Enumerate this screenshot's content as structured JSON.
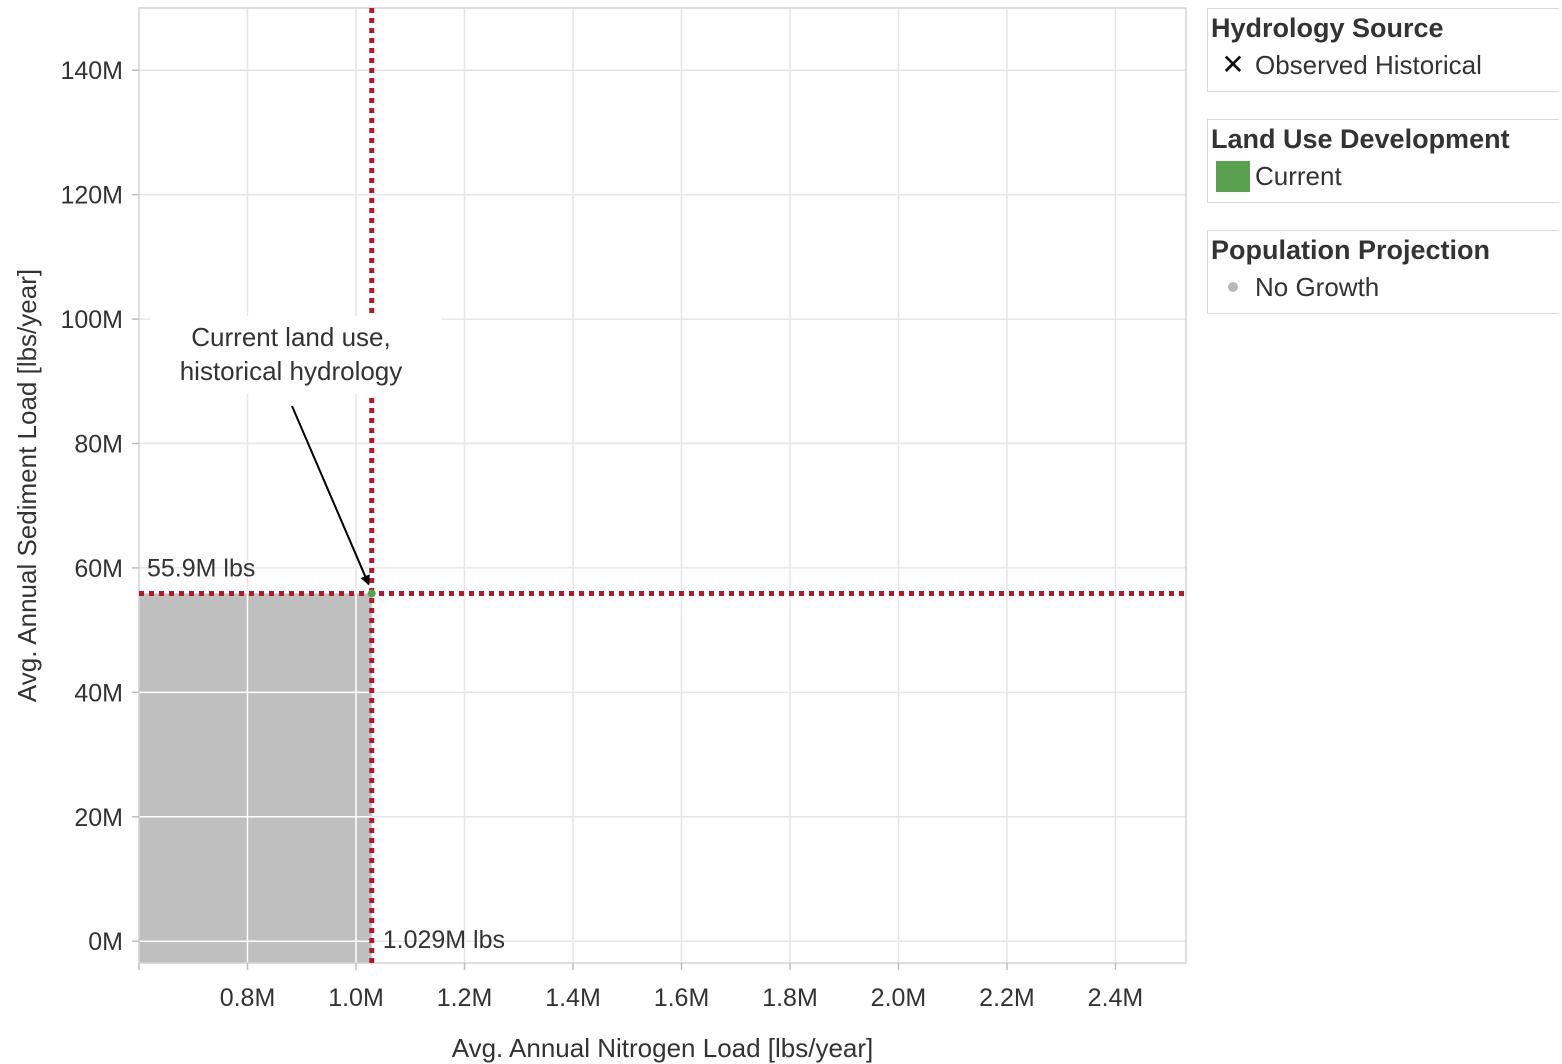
{
  "chart_data": {
    "type": "scatter",
    "xlabel": "Avg. Annual Nitrogen Load [lbs/year]",
    "ylabel": "Avg. Annual Sediment Load  [lbs/year]",
    "xlim": [
      0.6,
      2.53
    ],
    "ylim": [
      -3.5,
      150
    ],
    "x_ticks": [
      {
        "v": 0.8,
        "label": "0.8M"
      },
      {
        "v": 1.0,
        "label": "1.0M"
      },
      {
        "v": 1.2,
        "label": "1.2M"
      },
      {
        "v": 1.4,
        "label": "1.4M"
      },
      {
        "v": 1.6,
        "label": "1.6M"
      },
      {
        "v": 1.8,
        "label": "1.8M"
      },
      {
        "v": 2.0,
        "label": "2.0M"
      },
      {
        "v": 2.2,
        "label": "2.2M"
      },
      {
        "v": 2.4,
        "label": "2.4M"
      }
    ],
    "y_ticks": [
      {
        "v": 0,
        "label": "0M"
      },
      {
        "v": 20,
        "label": "20M"
      },
      {
        "v": 40,
        "label": "40M"
      },
      {
        "v": 60,
        "label": "60M"
      },
      {
        "v": 80,
        "label": "80M"
      },
      {
        "v": 100,
        "label": "100M"
      },
      {
        "v": 120,
        "label": "120M"
      },
      {
        "v": 140,
        "label": "140M"
      }
    ],
    "grid": true,
    "points": [
      {
        "x": 1.029,
        "y": 55.9,
        "color": "#59a14f"
      }
    ],
    "reference_lines": {
      "x": {
        "value": 1.029,
        "label": "1.029M lbs",
        "color": "#b2182b"
      },
      "y": {
        "value": 55.9,
        "label": "55.9M lbs",
        "color": "#b2182b"
      }
    },
    "shaded_region": {
      "x": [
        0.6,
        1.029
      ],
      "y": [
        -3.5,
        55.9
      ],
      "color": "#bfbfbf"
    },
    "annotation": {
      "lines": [
        "Current land use,",
        "historical hydrology"
      ],
      "x": 1.029,
      "y": 55.9
    }
  },
  "legend": {
    "hydrology": {
      "title": "Hydrology Source",
      "item": "Observed Historical",
      "icon": "x-mark-icon"
    },
    "land_use": {
      "title": "Land Use Development",
      "item": "Current",
      "color": "#59a14f"
    },
    "population": {
      "title": "Population Projection",
      "item": "No Growth",
      "color": "#b9b9b9"
    }
  }
}
